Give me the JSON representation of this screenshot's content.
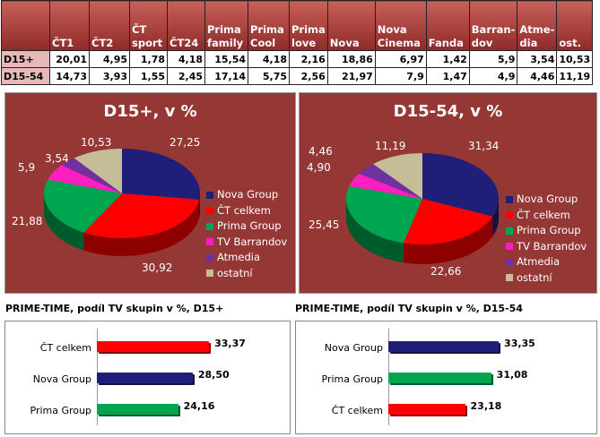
{
  "table": {
    "headers": [
      "",
      "ČT1",
      "ČT2",
      "ČT sport",
      "ČT24",
      "Prima family",
      "Prima Cool",
      "Prima love",
      "Nova",
      "Nova Cinema",
      "Fanda",
      "Barran-dov",
      "Atme-dia",
      "ost."
    ],
    "rows": [
      {
        "label": "D15+",
        "values": [
          "20,01",
          "4,95",
          "1,78",
          "4,18",
          "15,54",
          "4,18",
          "2,16",
          "18,86",
          "6,97",
          "1,42",
          "5,9",
          "3,54",
          "10,53"
        ]
      },
      {
        "label": "D15-54",
        "values": [
          "14,73",
          "3,93",
          "1,55",
          "2,45",
          "17,14",
          "5,75",
          "2,56",
          "21,97",
          "7,9",
          "1,47",
          "4,9",
          "4,46",
          "11,19"
        ]
      }
    ]
  },
  "chart_data": [
    {
      "type": "pie",
      "title": "D15+, v %",
      "categories": [
        "Nova Group",
        "ČT celkem",
        "Prima Group",
        "TV Barrandov",
        "Atmedia",
        "ostatní"
      ],
      "values": [
        27.25,
        30.92,
        21.88,
        5.9,
        3.54,
        10.53
      ],
      "labels": [
        "27,25",
        "30,92",
        "21,88",
        "5,9",
        "3,54",
        "10,53"
      ],
      "colors": [
        "#1f1f7a",
        "#ff0000",
        "#00a550",
        "#ff1fc0",
        "#7030a0",
        "#c4bd97"
      ],
      "legend": "right"
    },
    {
      "type": "pie",
      "title": "D15-54, v %",
      "categories": [
        "Nova Group",
        "ČT celkem",
        "Prima Group",
        "TV Barrandov",
        "Atmedia",
        "ostatní"
      ],
      "values": [
        31.34,
        22.66,
        25.45,
        4.9,
        4.46,
        11.19
      ],
      "labels": [
        "31,34",
        "22,66",
        "25,45",
        "4,90",
        "4,46",
        "11,19"
      ],
      "colors": [
        "#1f1f7a",
        "#ff0000",
        "#00a550",
        "#ff1fc0",
        "#7030a0",
        "#c4bd97"
      ],
      "legend": "right"
    },
    {
      "type": "bar",
      "title": "PRIME-TIME, podíl TV skupin v %, D15+",
      "categories": [
        "ČT celkem",
        "Nova Group",
        "Prima Group"
      ],
      "values": [
        33.37,
        28.5,
        24.16
      ],
      "labels": [
        "33,37",
        "28,50",
        "24,16"
      ],
      "colors": [
        "#ff0000",
        "#1f1f7a",
        "#00a550"
      ]
    },
    {
      "type": "bar",
      "title": "PRIME-TIME, podíl TV skupin v %, D15-54",
      "categories": [
        "Nova Group",
        "Prima Group",
        "ČT celkem"
      ],
      "values": [
        33.35,
        31.08,
        23.18
      ],
      "labels": [
        "33,35",
        "31,08",
        "23,18"
      ],
      "colors": [
        "#1f1f7a",
        "#00a550",
        "#ff0000"
      ]
    }
  ]
}
